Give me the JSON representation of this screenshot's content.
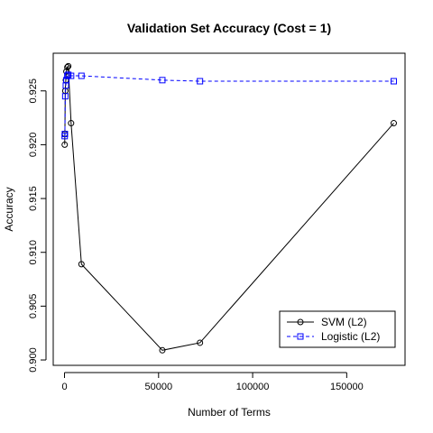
{
  "chart_data": {
    "type": "line",
    "title": "Validation Set Accuracy (Cost = 1)",
    "xlabel": "Number of Terms",
    "ylabel": "Accuracy",
    "xlim": [
      -6000,
      181000
    ],
    "ylim": [
      0.8995,
      0.9285
    ],
    "x_ticks": [
      0,
      50000,
      100000,
      150000
    ],
    "x_tick_labels": [
      "0",
      "50000",
      "100000",
      "150000"
    ],
    "y_ticks": [
      0.9,
      0.905,
      0.91,
      0.915,
      0.92,
      0.925
    ],
    "y_tick_labels": [
      "0.900",
      "0.905",
      "0.910",
      "0.915",
      "0.920",
      "0.925"
    ],
    "grid": false,
    "legend_position": "bottom-right",
    "series": [
      {
        "name": "SVM (L2)",
        "color": "#000000",
        "line_style": "solid",
        "marker": "circle",
        "x": [
          100,
          200,
          400,
          700,
          1000,
          1500,
          2000,
          3500,
          9000,
          52000,
          72000,
          175000
        ],
        "y": [
          0.92,
          0.921,
          0.925,
          0.926,
          0.9268,
          0.9272,
          0.9273,
          0.922,
          0.9089,
          0.9009,
          0.9016,
          0.922
        ]
      },
      {
        "name": "Logistic (L2)",
        "color": "#0000ff",
        "line_style": "dashed",
        "marker": "square",
        "x": [
          100,
          200,
          400,
          700,
          1000,
          1500,
          2000,
          3500,
          9000,
          52000,
          72000,
          175000
        ],
        "y": [
          0.9208,
          0.921,
          0.9245,
          0.9255,
          0.926,
          0.9264,
          0.9265,
          0.9264,
          0.9264,
          0.926,
          0.9259,
          0.9259
        ]
      }
    ]
  }
}
